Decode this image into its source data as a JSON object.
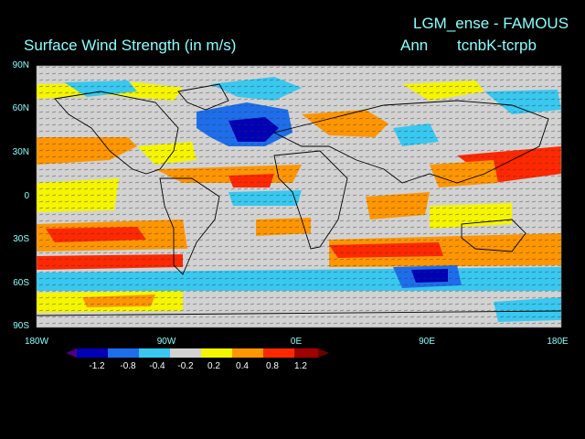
{
  "title": "Surface Wind Strength (in m/s)",
  "experiment": "LGM_ense - FAMOUS",
  "season": "Ann",
  "difference": "tcnbK-tcrpb",
  "lat_labels": [
    "90N",
    "60N",
    "30N",
    "0",
    "30S",
    "60S",
    "90S"
  ],
  "lon_labels": [
    "180W",
    "90W",
    "0E",
    "90E",
    "180E"
  ],
  "colorbar": {
    "labels": [
      "-1.2",
      "-0.8",
      "-0.4",
      "-0.2",
      "0.2",
      "0.4",
      "0.8",
      "1.2"
    ],
    "colors": [
      "#0000b4",
      "#1e6eeb",
      "#38c8f0",
      "#d2d2d2",
      "#f5f500",
      "#ff9600",
      "#ff2800",
      "#a00000"
    ]
  },
  "colors": {
    "background": "#000000",
    "text": "#88ffff",
    "land_outline": "#000000",
    "vectors": "#333333"
  }
}
